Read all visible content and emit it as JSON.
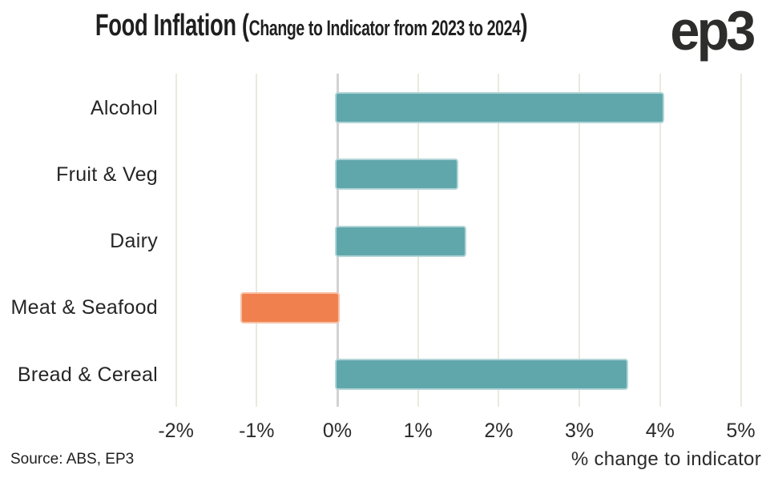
{
  "header": {
    "title_main": "Food Inflation (",
    "title_sub": "Change to Indicator from 2023 to 2024",
    "title_close": ")",
    "logo_text": "ep3"
  },
  "chart_data": {
    "type": "bar",
    "orientation": "horizontal",
    "title": "Food Inflation (Change to Indicator from 2023 to 2024)",
    "categories": [
      "Alcohol",
      "Fruit & Veg",
      "Dairy",
      "Meat & Seafood",
      "Bread & Cereal"
    ],
    "values": [
      4.05,
      1.5,
      1.6,
      -1.2,
      3.6
    ],
    "xlabel": "% change to indicator",
    "x_ticks": [
      "-2%",
      "-1%",
      "0%",
      "1%",
      "2%",
      "3%",
      "4%",
      "5%"
    ],
    "x_tick_values": [
      -2,
      -1,
      0,
      1,
      2,
      3,
      4,
      5
    ],
    "xlim": [
      -2.1,
      5.3
    ],
    "grid": true,
    "legend": false,
    "positive_color": "#60a7ac",
    "negative_color": "#f0814f",
    "positive_stroke": "#b3d5d7",
    "negative_stroke": "#f7c0a5",
    "grid_color": "#ebe8de",
    "zero_line_color": "#d2d2d2",
    "background_color": "#ffffff"
  },
  "footer": {
    "source": "Source: ABS, EP3"
  }
}
